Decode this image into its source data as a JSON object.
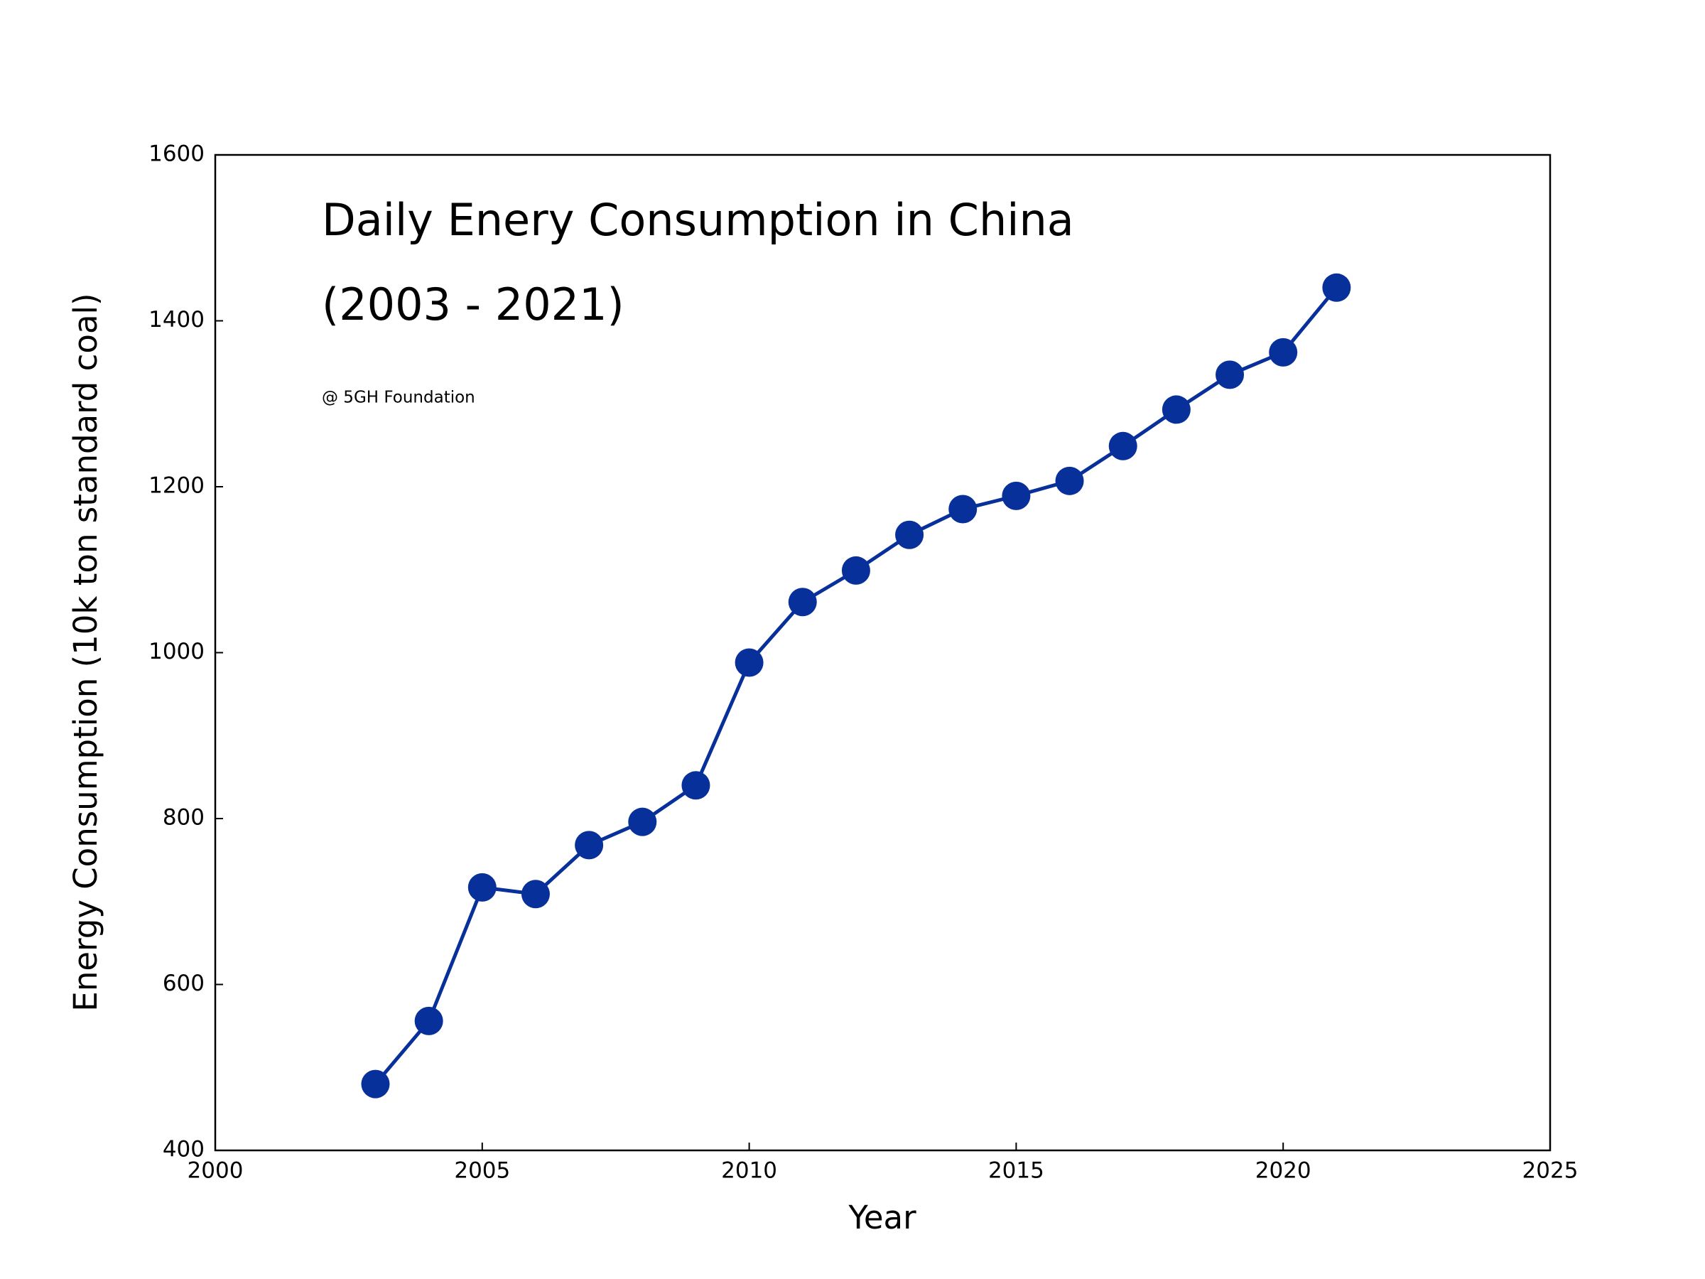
{
  "chart_data": {
    "type": "line",
    "title": "Daily Enery Consumption in China",
    "subtitle": "(2003 - 2021)",
    "annotation": "@ 5GH Foundation",
    "x_label": "Year",
    "y_label": "Energy Consumption (10k ton standard coal)",
    "x": [
      2003,
      2004,
      2005,
      2006,
      2007,
      2008,
      2009,
      2010,
      2011,
      2012,
      2013,
      2014,
      2015,
      2016,
      2017,
      2018,
      2019,
      2020,
      2021
    ],
    "series": [
      {
        "color": "#08309a",
        "values": [
          480,
          556,
          717,
          709,
          768,
          796,
          840,
          988,
          1061,
          1099,
          1142,
          1173,
          1189,
          1207,
          1249,
          1293,
          1335,
          1362,
          1440
        ]
      }
    ],
    "xlim": [
      2000,
      2025
    ],
    "xticks": [
      2000,
      2005,
      2010,
      2015,
      2020,
      2025
    ],
    "ylim": [
      400,
      1600
    ],
    "yticks": [
      400,
      600,
      800,
      1000,
      1200,
      1400,
      1600
    ],
    "grid": false
  }
}
